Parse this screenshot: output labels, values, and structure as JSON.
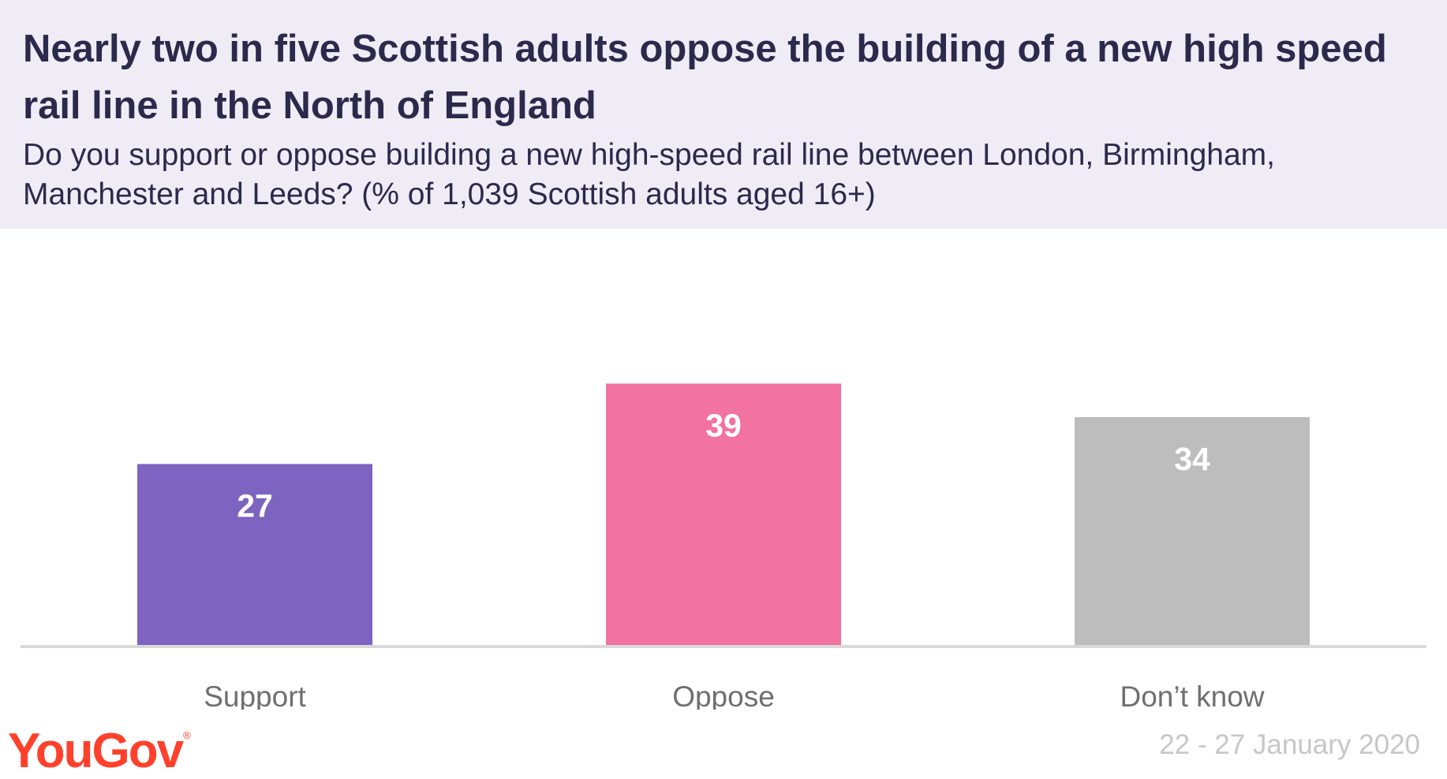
{
  "header": {
    "title": "Nearly two in five Scottish adults oppose the building of a new high speed rail line in the North of England",
    "subtitle": "Do you support or oppose building a new high-speed rail line between London, Birmingham, Manchester and Leeds? (% of 1,039 Scottish adults aged 16+)"
  },
  "chart_data": {
    "type": "bar",
    "categories": [
      "Support",
      "Oppose",
      "Don’t know"
    ],
    "values": [
      27,
      39,
      34
    ],
    "data_labels": [
      "27",
      "39",
      "34"
    ],
    "colors": [
      "#7d64c0",
      "#f272a0",
      "#bdbdbd"
    ],
    "ylim": [
      0,
      50
    ],
    "grid": false,
    "legend": "none",
    "xlabel": "",
    "ylabel": ""
  },
  "footer": {
    "brand": "YouGov",
    "registered_mark": "®",
    "date": "22 - 27 January 2020"
  },
  "colors": {
    "header_background": "#efecf5",
    "title_text": "#2b2a4c",
    "brand_red": "#ff412c",
    "axis_line": "#d9d9d9",
    "date_text": "#c7c7c7"
  }
}
